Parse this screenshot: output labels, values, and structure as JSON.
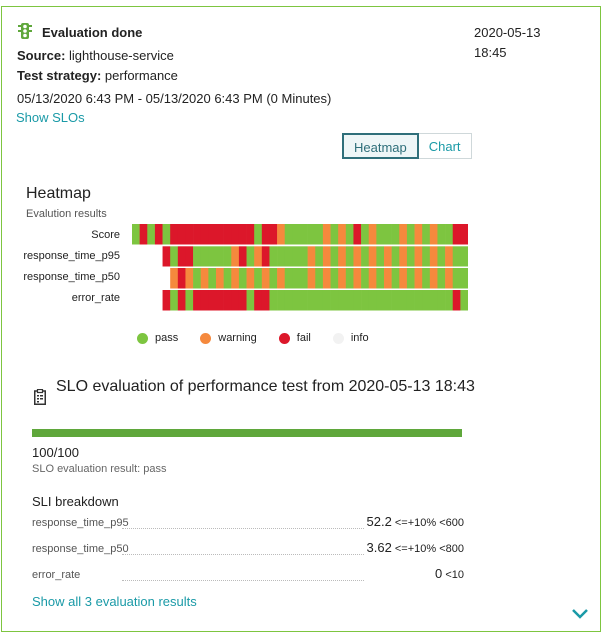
{
  "event": {
    "title": "Evaluation done",
    "source_label": "Source:",
    "source_value": "lighthouse-service",
    "strategy_label": "Test strategy:",
    "strategy_value": "performance",
    "date": "2020-05-13",
    "time": "18:45",
    "time_range": "05/13/2020 6:43 PM - 05/13/2020 6:43 PM (0 Minutes)",
    "show_slos": "Show SLOs"
  },
  "tabs": {
    "heatmap": "Heatmap",
    "chart": "Chart",
    "active": "Heatmap"
  },
  "heatmap": {
    "title": "Heatmap",
    "subtitle": "Evalution results",
    "rows": [
      "Score",
      "response_time_p95",
      "response_time_p50",
      "error_rate"
    ],
    "legend": [
      {
        "label": "pass",
        "color": "#7dc540"
      },
      {
        "label": "warning",
        "color": "#f5893d"
      },
      {
        "label": "fail",
        "color": "#dc172a"
      },
      {
        "label": "info",
        "color": "#f2f2f2"
      }
    ],
    "colors": {
      "p": "#7dc540",
      "w": "#f5893d",
      "f": "#dc172a",
      "i": "#ffffff"
    },
    "cells": [
      "pfpfpfffffffffffpffwpppppwpwpfpwpppwpwpwppff",
      "iiiifpffpppppwfpwfpppppwpwpwpwpwpwpwpwpwpwpp",
      "iiiiiwfwpwpwpwpwpwpwpppwpwpwpwpwpwpwpwpwpwpp",
      "iiiifpfpfffffffpffppppppppppppppppppppppppfp"
    ]
  },
  "slo": {
    "title": "SLO evaluation of performance test from 2020-05-13 18:43",
    "score": "100/100",
    "score_fraction": 1.0,
    "result": "SLO evaluation result: pass",
    "breakdown_title": "SLI breakdown",
    "sli": [
      {
        "name": "response_time_p95",
        "value": "52.2",
        "criteria": "<=+10% <600"
      },
      {
        "name": "response_time_p50",
        "value": "3.62",
        "criteria": "<=+10% <800"
      },
      {
        "name": "error_rate",
        "value": "0",
        "criteria": "<10"
      }
    ],
    "show_all": "Show all 3 evaluation results"
  }
}
